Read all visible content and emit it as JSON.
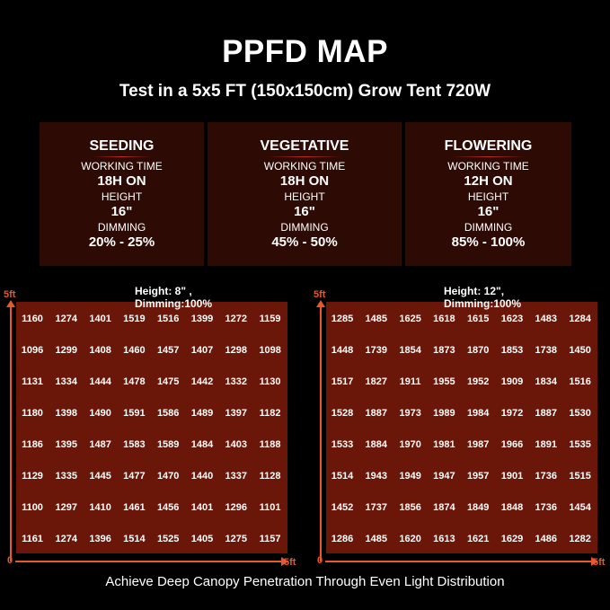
{
  "title": "PPFD MAP",
  "subtitle": "Test in a 5x5 FT (150x150cm) Grow Tent 720W",
  "cards": [
    {
      "stage": "SEEDING",
      "working_time_label": "WORKING TIME",
      "working_time": "18H ON",
      "height_label": "HEIGHT",
      "height": "16\"",
      "dimming_label": "DIMMING",
      "dimming": "20% - 25%"
    },
    {
      "stage": "VEGETATIVE",
      "working_time_label": "WORKING TIME",
      "working_time": "18H ON",
      "height_label": "HEIGHT",
      "height": "16\"",
      "dimming_label": "DIMMING",
      "dimming": "45% - 50%"
    },
    {
      "stage": "FLOWERING",
      "working_time_label": "WORKING TIME",
      "working_time": "12H ON",
      "height_label": "HEIGHT",
      "height": "16\"",
      "dimming_label": "DIMMING",
      "dimming": "85% - 100%"
    }
  ],
  "maps": [
    {
      "caption": "Height: 8\" , Dimming:100%",
      "y_max_label": "5ft",
      "origin_label": "0",
      "x_max_label": "5ft",
      "values": [
        [
          1160,
          1274,
          1401,
          1519,
          1516,
          1399,
          1272,
          1159
        ],
        [
          1096,
          1299,
          1408,
          1460,
          1457,
          1407,
          1298,
          1098
        ],
        [
          1131,
          1334,
          1444,
          1478,
          1475,
          1442,
          1332,
          1130
        ],
        [
          1180,
          1398,
          1490,
          1591,
          1586,
          1489,
          1397,
          1182
        ],
        [
          1186,
          1395,
          1487,
          1583,
          1589,
          1484,
          1403,
          1188
        ],
        [
          1129,
          1335,
          1445,
          1477,
          1470,
          1440,
          1337,
          1128
        ],
        [
          1100,
          1297,
          1410,
          1461,
          1456,
          1401,
          1296,
          1101
        ],
        [
          1161,
          1274,
          1396,
          1514,
          1525,
          1405,
          1275,
          1157
        ]
      ]
    },
    {
      "caption": "Height: 12\", Dimming:100%",
      "y_max_label": "5ft",
      "origin_label": "0",
      "x_max_label": "5ft",
      "values": [
        [
          1285,
          1485,
          1625,
          1618,
          1615,
          1623,
          1483,
          1284
        ],
        [
          1448,
          1739,
          1854,
          1873,
          1870,
          1853,
          1738,
          1450
        ],
        [
          1517,
          1827,
          1911,
          1955,
          1952,
          1909,
          1834,
          1516
        ],
        [
          1528,
          1887,
          1973,
          1989,
          1984,
          1972,
          1887,
          1530
        ],
        [
          1533,
          1884,
          1970,
          1981,
          1987,
          1966,
          1891,
          1535
        ],
        [
          1514,
          1943,
          1949,
          1947,
          1957,
          1901,
          1736,
          1515
        ],
        [
          1452,
          1737,
          1856,
          1874,
          1849,
          1848,
          1736,
          1454
        ],
        [
          1286,
          1485,
          1620,
          1613,
          1621,
          1629,
          1486,
          1282
        ]
      ]
    }
  ],
  "heat_colors": [
    "#6a1608",
    "#9c1f08",
    "#d9480c",
    "#ee8a12"
  ],
  "axis_color": "#e8582a",
  "footer": "Achieve Deep Canopy Penetration Through Even Light Distribution"
}
